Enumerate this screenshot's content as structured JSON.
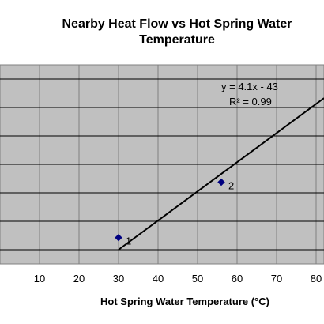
{
  "chart_data": {
    "type": "scatter",
    "title_line1": "Nearby Heat Flow vs Hot Spring Water",
    "title_line2": "Temperature",
    "xlabel": "Hot Spring Water  Temperature (°C)",
    "ylabel": "",
    "xlim": [
      0,
      82
    ],
    "ylim": [
      60,
      340
    ],
    "x_ticks": [
      10,
      20,
      30,
      40,
      50,
      60,
      70,
      80
    ],
    "y_gridlines": [
      80,
      120,
      160,
      200,
      240,
      280,
      320
    ],
    "grid": true,
    "plot_background": "#c0c0c0",
    "series": [
      {
        "color": "#000080",
        "points": [
          {
            "x": 30,
            "y": 97,
            "label": "1"
          },
          {
            "x": 56,
            "y": 175,
            "label": "2"
          }
        ]
      }
    ],
    "trendline": {
      "slope": 4.1,
      "intercept": -43,
      "x_range": [
        30,
        82
      ],
      "color": "#000000"
    },
    "annotations": {
      "equation": "y = 4.1x - 43",
      "r_squared": "R² = 0.99"
    }
  }
}
